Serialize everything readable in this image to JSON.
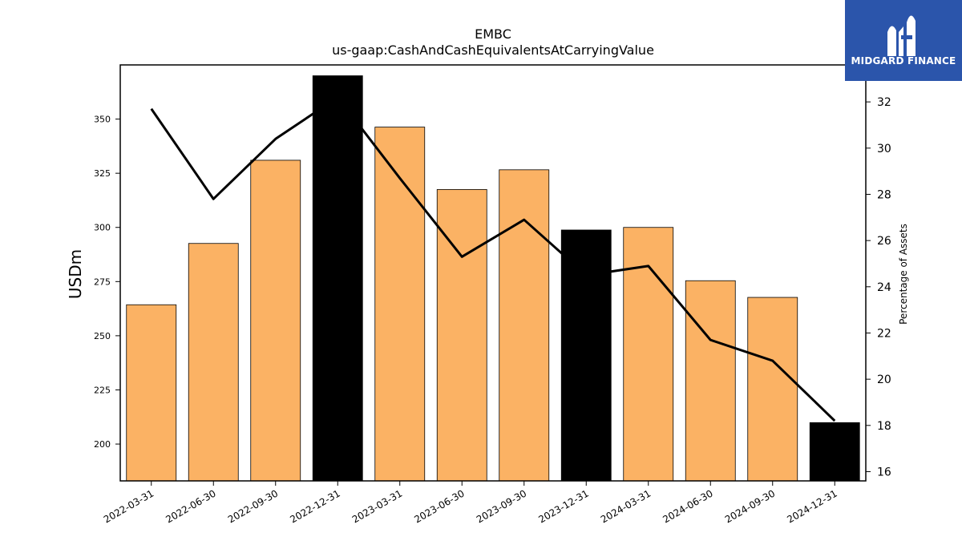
{
  "chart_data": {
    "type": "bar",
    "title": "EMBC",
    "subtitle": "us-gaap:CashAndCashEquivalentsAtCarryingValue",
    "ylabel": "USDm",
    "y2label": "Percentage of Assets",
    "categories": [
      "2022-03-31",
      "2022-06-30",
      "2022-09-30",
      "2022-12-31",
      "2023-03-31",
      "2023-06-30",
      "2023-09-30",
      "2023-12-31",
      "2024-03-31",
      "2024-06-30",
      "2024-09-30",
      "2024-12-31"
    ],
    "series": [
      {
        "values": [
          264.3,
          292.6,
          331.0,
          370.0,
          346.3,
          317.5,
          326.6,
          298.8,
          300.0,
          275.4,
          267.7,
          209.9
        ],
        "highlight": [
          false,
          false,
          false,
          true,
          false,
          false,
          false,
          true,
          false,
          false,
          false,
          true
        ]
      },
      {
        "values": [
          31.7,
          27.8,
          30.4,
          32.2,
          28.7,
          25.3,
          26.9,
          24.5,
          24.9,
          21.7,
          20.8,
          18.2
        ]
      }
    ],
    "ylim": [
      183,
      375
    ],
    "y2lim": [
      15.6,
      33.6
    ],
    "yticks": [
      200,
      225,
      250,
      275,
      300,
      325,
      350
    ],
    "y2ticks": [
      16,
      18,
      20,
      22,
      24,
      26,
      28,
      30,
      32
    ],
    "colors": {
      "bar": "#fbb264",
      "highlight": "#000000",
      "line": "#000000"
    }
  },
  "logo": {
    "text": "MIDGARD FINANCE",
    "color": "#2b55ab"
  }
}
